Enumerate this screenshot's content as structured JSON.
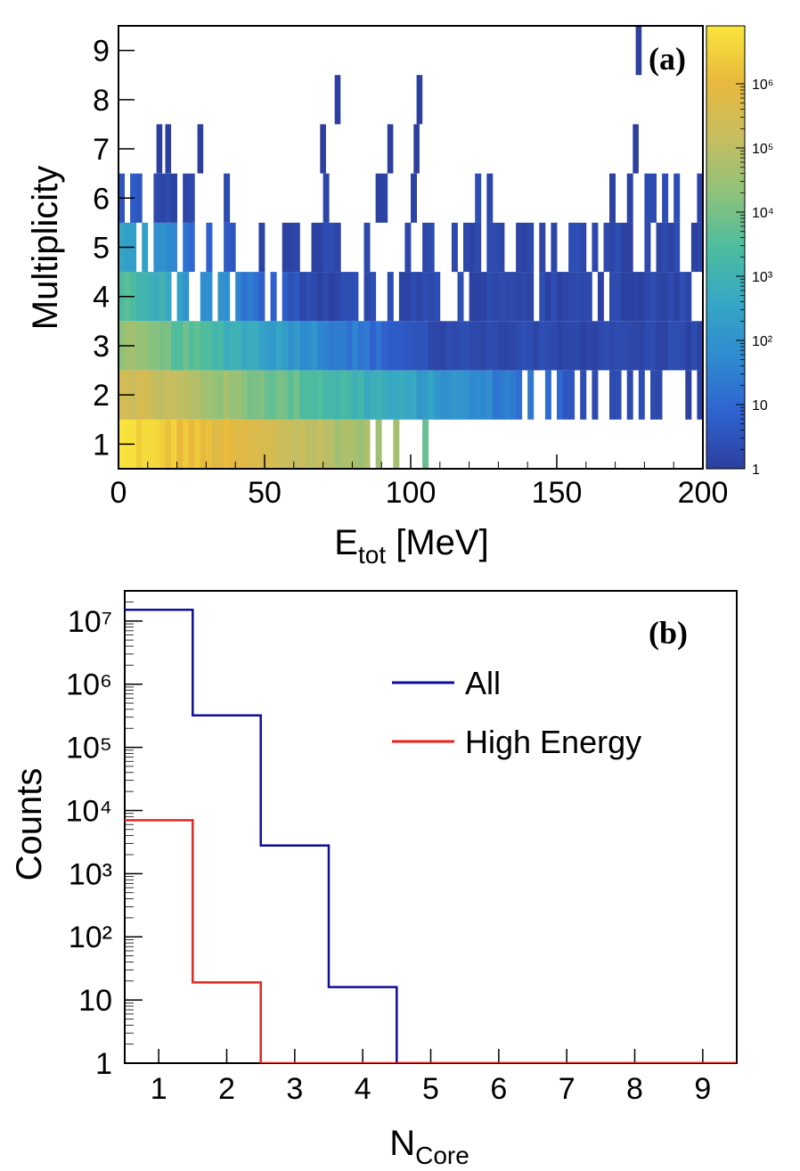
{
  "chart_data": [
    {
      "id": "a",
      "type": "heatmap",
      "panel_label": "(a)",
      "xlabel_main": "E",
      "xlabel_sub": "tot",
      "xlabel_rest": " [MeV]",
      "ylabel": "Multiplicity",
      "xlim": [
        0,
        200
      ],
      "ylim": [
        0.5,
        9.5
      ],
      "xticks": [
        "0",
        "50",
        "100",
        "150",
        "200"
      ],
      "yticks": [
        "1",
        "2",
        "3",
        "4",
        "5",
        "6",
        "7",
        "8",
        "9"
      ],
      "colorbar": {
        "scale": "log",
        "range": [
          1,
          8000000
        ],
        "labels": [
          "1",
          "10",
          "10²",
          "10³",
          "10⁴",
          "10⁵",
          "10⁶"
        ],
        "colors": [
          "#2c3f9e",
          "#2f62d0",
          "#2f8ad0",
          "#35a7c5",
          "#4dbd9e",
          "#8fc27b",
          "#c8bd5f",
          "#e8b93c",
          "#fae53c"
        ]
      },
      "rows": [
        {
          "multiplicity": 1,
          "emax": 110,
          "peak": 6.8
        },
        {
          "multiplicity": 2,
          "emax": 200,
          "peak": 5.6
        },
        {
          "multiplicity": 3,
          "emax": 200,
          "peak": 4.5
        },
        {
          "multiplicity": 4,
          "emax": 200,
          "peak": 3.5
        },
        {
          "multiplicity": 5,
          "emax": 200,
          "peak": 2.6
        },
        {
          "multiplicity": 6,
          "emax": 200,
          "peak": 0.8
        },
        {
          "multiplicity": 7,
          "emax": 178,
          "peak": 0.4
        },
        {
          "multiplicity": 8,
          "emax": 103,
          "peak": 0.2
        },
        {
          "multiplicity": 9,
          "emax": 178,
          "peak": 0.1
        }
      ],
      "isolated_bins": [
        {
          "multiplicity": 9,
          "e": 177
        },
        {
          "multiplicity": 8,
          "e": 74
        },
        {
          "multiplicity": 8,
          "e": 102
        },
        {
          "multiplicity": 7,
          "e": 13
        },
        {
          "multiplicity": 7,
          "e": 16
        },
        {
          "multiplicity": 7,
          "e": 27
        },
        {
          "multiplicity": 7,
          "e": 69
        },
        {
          "multiplicity": 7,
          "e": 92
        },
        {
          "multiplicity": 7,
          "e": 101
        },
        {
          "multiplicity": 7,
          "e": 176
        }
      ]
    },
    {
      "id": "b",
      "type": "line",
      "panel_label": "(b)",
      "xlabel_main": "N",
      "xlabel_sub": "Core",
      "ylabel": "Counts",
      "xlim": [
        0.5,
        9.5
      ],
      "ylim_log": [
        1,
        30000000
      ],
      "xticks": [
        "1",
        "2",
        "3",
        "4",
        "5",
        "6",
        "7",
        "8",
        "9"
      ],
      "yticks": [
        "1",
        "10",
        "10²",
        "10³",
        "10⁴",
        "10⁵",
        "10⁶",
        "10⁷"
      ],
      "x": [
        1,
        2,
        3,
        4,
        5,
        6,
        7,
        8,
        9
      ],
      "series": [
        {
          "name": "All",
          "color": "#0d0d9c",
          "values": [
            15000000,
            320000,
            2800,
            16,
            1,
            1,
            1,
            1,
            1
          ]
        },
        {
          "name": "High Energy",
          "color": "#e8231c",
          "values": [
            7000,
            19,
            1,
            1,
            1,
            1,
            1,
            1,
            1
          ]
        }
      ]
    }
  ]
}
